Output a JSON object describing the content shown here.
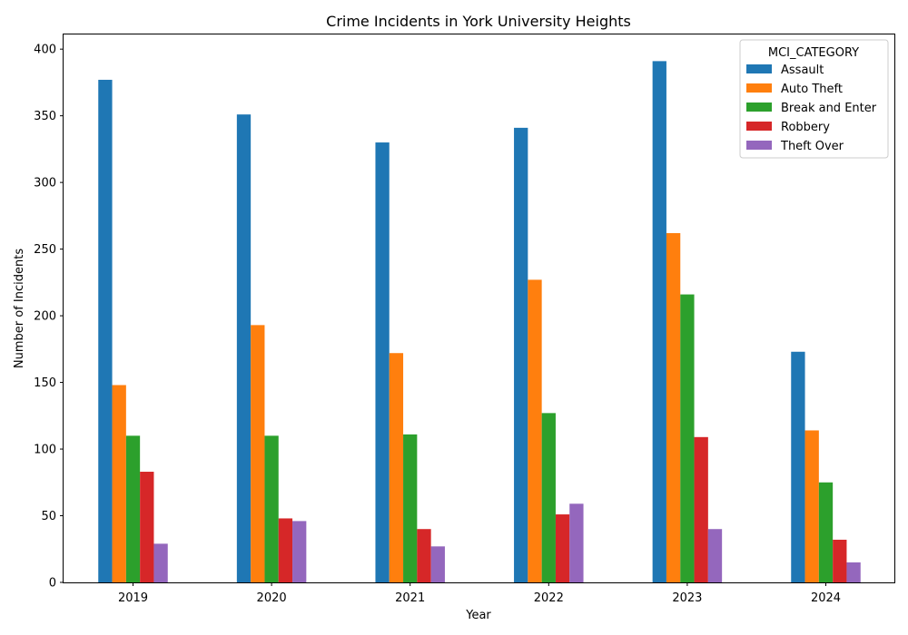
{
  "chart_data": {
    "type": "bar",
    "title": "Crime Incidents in York University Heights",
    "xlabel": "Year",
    "ylabel": "Number of Incidents",
    "categories": [
      "2019",
      "2020",
      "2021",
      "2022",
      "2023",
      "2024"
    ],
    "ylim": [
      0,
      411
    ],
    "yticks": [
      0,
      50,
      100,
      150,
      200,
      250,
      300,
      350,
      400
    ],
    "grid": false,
    "legend_title": "MCI_CATEGORY",
    "legend_position": "top-right",
    "series": [
      {
        "name": "Assault",
        "color": "#1f77b4",
        "values": [
          377,
          351,
          330,
          341,
          391,
          173
        ]
      },
      {
        "name": "Auto Theft",
        "color": "#ff7f0e",
        "values": [
          148,
          193,
          172,
          227,
          262,
          114
        ]
      },
      {
        "name": "Break and Enter",
        "color": "#2ca02c",
        "values": [
          110,
          110,
          111,
          127,
          216,
          75
        ]
      },
      {
        "name": "Robbery",
        "color": "#d62728",
        "values": [
          83,
          48,
          40,
          51,
          109,
          32
        ]
      },
      {
        "name": "Theft Over",
        "color": "#9467bd",
        "values": [
          29,
          46,
          27,
          59,
          40,
          15
        ]
      }
    ]
  }
}
